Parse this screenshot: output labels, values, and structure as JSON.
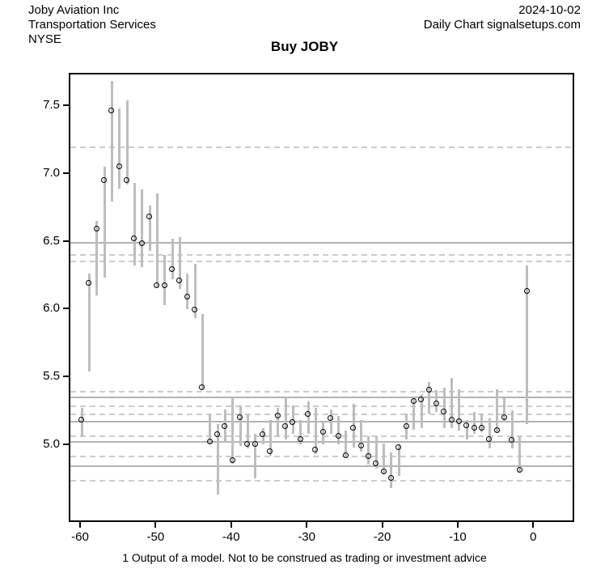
{
  "header": {
    "company": "Joby Aviation Inc",
    "sector": "Transportation Services",
    "exchange": "NYSE",
    "date": "2024-10-02",
    "source": "Daily Chart signalsetups.com"
  },
  "footnote": "1 Output of a model. Not to be construed as trading or investment advice",
  "colors": {
    "bar": "#bdbdbd",
    "solid_line": "#b3b3b3",
    "dashed_line": "#cccccc",
    "axis": "#000000",
    "background": "#ffffff"
  },
  "chart_data": {
    "type": "bar",
    "subtype": "high-low-close",
    "title": "Buy JOBY",
    "xlabel": "",
    "ylabel": "",
    "xlim": [
      -61.5,
      5.0
    ],
    "ylim": [
      4.45,
      7.74
    ],
    "x_ticks": [
      -60,
      -50,
      -40,
      -30,
      -20,
      -10,
      0
    ],
    "y_ticks": [
      "5.0",
      "5.5",
      "6.0",
      "6.5",
      "7.0",
      "7.5"
    ],
    "grid": false,
    "legend": "none",
    "reference_lines_solid": [
      6.5,
      5.36,
      5.18,
      5.03,
      4.85
    ],
    "reference_lines_dashed": [
      7.2,
      6.41,
      6.36,
      5.4,
      5.29,
      5.23,
      5.07,
      4.92,
      4.74
    ],
    "columns": [
      "day",
      "high",
      "low",
      "close"
    ],
    "bars": [
      [
        -60,
        5.28,
        5.07,
        5.19
      ],
      [
        -59,
        6.27,
        5.55,
        6.2
      ],
      [
        -58,
        6.66,
        6.11,
        6.6
      ],
      [
        -57,
        7.06,
        6.24,
        6.96
      ],
      [
        -56,
        7.69,
        6.8,
        7.47
      ],
      [
        -55,
        7.49,
        6.9,
        7.06
      ],
      [
        -54,
        7.55,
        6.93,
        6.96
      ],
      [
        -53,
        6.94,
        6.33,
        6.53
      ],
      [
        -52,
        6.89,
        6.32,
        6.49
      ],
      [
        -51,
        6.77,
        6.44,
        6.69
      ],
      [
        -50,
        6.86,
        6.17,
        6.18
      ],
      [
        -49,
        6.41,
        6.04,
        6.18
      ],
      [
        -48,
        6.53,
        6.23,
        6.3
      ],
      [
        -47,
        6.54,
        6.16,
        6.22
      ],
      [
        -46,
        6.27,
        6.01,
        6.1
      ],
      [
        -45,
        6.34,
        5.94,
        6.0
      ],
      [
        -44,
        5.97,
        5.42,
        5.43
      ],
      [
        -43,
        5.23,
        5.02,
        5.03
      ],
      [
        -42,
        5.16,
        4.64,
        5.08
      ],
      [
        -41,
        5.27,
        5.03,
        5.14
      ],
      [
        -40,
        5.35,
        4.87,
        4.89
      ],
      [
        -39,
        5.3,
        5.0,
        5.21
      ],
      [
        -38,
        5.24,
        4.98,
        5.01
      ],
      [
        -37,
        5.09,
        4.76,
        5.01
      ],
      [
        -36,
        5.13,
        5.01,
        5.08
      ],
      [
        -35,
        5.19,
        4.93,
        4.96
      ],
      [
        -34,
        5.28,
        5.07,
        5.22
      ],
      [
        -33,
        5.36,
        5.05,
        5.14
      ],
      [
        -32,
        5.3,
        5.09,
        5.17
      ],
      [
        -31,
        5.19,
        5.01,
        5.05
      ],
      [
        -30,
        5.33,
        5.09,
        5.23
      ],
      [
        -29,
        5.28,
        4.94,
        4.97
      ],
      [
        -28,
        5.18,
        5.01,
        5.1
      ],
      [
        -27,
        5.27,
        5.09,
        5.2
      ],
      [
        -26,
        5.22,
        5.01,
        5.07
      ],
      [
        -25,
        5.11,
        4.93,
        4.93
      ],
      [
        -24,
        5.31,
        4.99,
        5.13
      ],
      [
        -23,
        5.19,
        4.96,
        5.0
      ],
      [
        -22,
        5.07,
        4.86,
        4.92
      ],
      [
        -21,
        5.07,
        4.83,
        4.87
      ],
      [
        -20,
        5.02,
        4.79,
        4.81
      ],
      [
        -19,
        4.95,
        4.69,
        4.76
      ],
      [
        -18,
        5.01,
        4.78,
        4.99
      ],
      [
        -17,
        5.24,
        5.05,
        5.14
      ],
      [
        -16,
        5.36,
        5.12,
        5.33
      ],
      [
        -15,
        5.38,
        5.13,
        5.34
      ],
      [
        -14,
        5.47,
        5.24,
        5.41
      ],
      [
        -13,
        5.41,
        5.25,
        5.31
      ],
      [
        -12,
        5.43,
        5.13,
        5.25
      ],
      [
        -11,
        5.5,
        5.13,
        5.19
      ],
      [
        -10,
        5.42,
        5.11,
        5.18
      ],
      [
        -9,
        5.19,
        5.05,
        5.15
      ],
      [
        -8,
        5.25,
        5.09,
        5.13
      ],
      [
        -7,
        5.24,
        5.1,
        5.13
      ],
      [
        -6,
        5.2,
        4.98,
        5.05
      ],
      [
        -5,
        5.42,
        5.1,
        5.11
      ],
      [
        -4,
        5.35,
        5.17,
        5.21
      ],
      [
        -3,
        5.26,
        4.98,
        5.04
      ],
      [
        -2,
        5.07,
        4.8,
        4.82
      ],
      [
        -1,
        6.33,
        5.16,
        6.14
      ]
    ]
  }
}
